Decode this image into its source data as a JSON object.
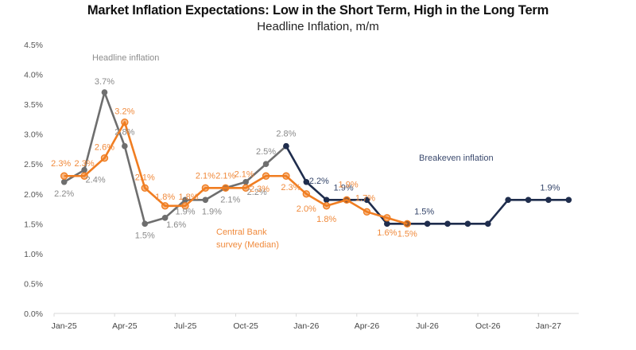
{
  "chart_data": {
    "type": "line",
    "title": "Market Inflation Expectations: Low in the Short Term, High in the Long Term",
    "subtitle": "Headline Inflation, m/m",
    "xlabel": "",
    "ylabel": "",
    "ylim": [
      0,
      4.5
    ],
    "yticks": [
      0.0,
      0.5,
      1.0,
      1.5,
      2.0,
      2.5,
      3.0,
      3.5,
      4.0,
      4.5
    ],
    "ytick_labels": [
      "0.0%",
      "0.5%",
      "1.0%",
      "1.5%",
      "2.0%",
      "2.5%",
      "3.0%",
      "3.5%",
      "4.0%",
      "4.5%"
    ],
    "grid": false,
    "x": [
      "Jan-25",
      "Feb-25",
      "Mar-25",
      "Apr-25",
      "May-25",
      "Jun-25",
      "Jul-25",
      "Aug-25",
      "Sep-25",
      "Oct-25",
      "Nov-25",
      "Dec-25",
      "Jan-26",
      "Feb-26",
      "Mar-26",
      "Apr-26",
      "May-26",
      "Jun-26",
      "Jul-26",
      "Aug-26",
      "Sep-26",
      "Oct-26",
      "Nov-26",
      "Dec-26",
      "Jan-27",
      "Feb-27"
    ],
    "xtick_labels": [
      "Jan-25",
      "Apr-25",
      "Jul-25",
      "Oct-25",
      "Jan-26",
      "Apr-26",
      "Jul-26",
      "Oct-26",
      "Jan-27"
    ],
    "series": [
      {
        "name": "Headline inflation",
        "color": "#6e6e6e",
        "start_index": 0,
        "values": [
          2.2,
          2.4,
          3.7,
          2.8,
          1.5,
          1.6,
          1.9,
          1.9,
          2.1,
          2.2,
          2.5,
          2.8
        ],
        "labels": [
          "2.2%",
          "2.4%",
          "3.7%",
          "2.8%",
          "1.5%",
          "1.6%",
          "1.9%",
          "1.9%",
          "2.1%",
          "2.2%",
          "2.5%",
          "2.8%"
        ]
      },
      {
        "name": "Central Bank survey (Median)",
        "color": "#f07d21",
        "start_index": 0,
        "values": [
          2.3,
          2.3,
          2.6,
          3.2,
          2.1,
          1.8,
          1.8,
          2.1,
          2.1,
          2.1,
          2.3,
          2.3,
          2.0,
          1.8,
          1.9,
          1.7,
          1.6,
          1.5
        ],
        "labels": [
          "2.3%",
          "2.3%",
          "2.6%",
          "3.2%",
          "2.1%",
          "1.8%",
          "1.8%",
          "2.1%",
          "2.1%",
          "2.1%",
          "2.3%",
          "2.3%",
          "2.0%",
          "1.8%",
          "1.9%",
          "1.7%",
          "1.6%",
          "1.5%"
        ]
      },
      {
        "name": "Breakeven inflation",
        "color": "#1f2d4d",
        "start_index": 11,
        "values": [
          2.8,
          2.2,
          1.9,
          1.9,
          1.9,
          1.5,
          1.5,
          1.5,
          1.5,
          1.5,
          1.5,
          1.9,
          1.9,
          1.9,
          1.9
        ],
        "labels": [
          null,
          "2.2%",
          null,
          "1.9%",
          null,
          null,
          null,
          "1.5%",
          null,
          null,
          null,
          null,
          null,
          "1.9%",
          null
        ]
      }
    ],
    "annotations": [
      {
        "text": "Headline inflation",
        "series": "Headline inflation"
      },
      {
        "text": "Central Bank",
        "series": "Central Bank survey (Median)"
      },
      {
        "text": "survey (Median)",
        "series": "Central Bank survey (Median)"
      },
      {
        "text": "Breakeven inflation",
        "series": "Breakeven inflation"
      }
    ],
    "legend": "none (inline annotations)"
  }
}
